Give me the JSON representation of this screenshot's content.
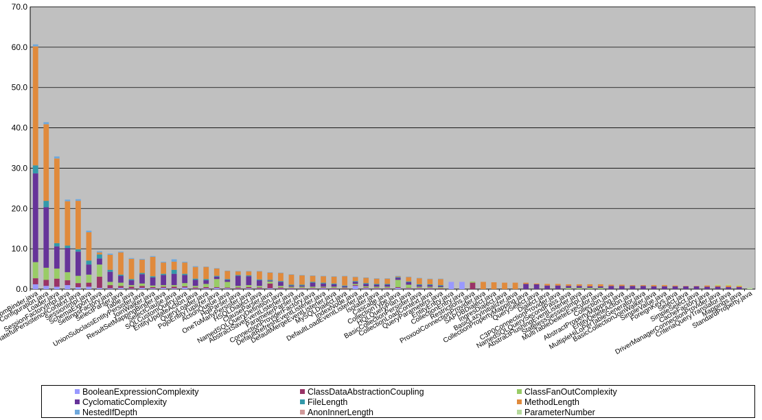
{
  "chart_data": {
    "type": "bar",
    "stacked": true,
    "ylim": [
      0,
      70
    ],
    "yticks": [
      "0.0",
      "10.0",
      "20.0",
      "30.0",
      "40.0",
      "50.0",
      "60.0",
      "70.0"
    ],
    "grid": true,
    "legend_position": "bottom",
    "categories": [
      "HbmBinder.java",
      "Configuration.java",
      "Loader.java",
      "SessionFactoryImpl.java",
      "StatefulPersistenceContext.java",
      "SessionImpl.java",
      "SchemaExport.java",
      "SettingsFactory.java",
      "SelectParser.java",
      "Table.java",
      "UnionSubclassEntityPersister.java",
      "JoinWalker.java",
      "ResultSetMappingBinder.java",
      "SelectClause.java",
      "SQLCustomQuery.java",
      "EntityUpdateAction.java",
      "QueryLoader.java",
      "PojoEntityTuplizer.java",
      "ActionQueue.java",
      "HqlParser.java",
      "OneToManyPersister.java",
      "HSQLDialect.java",
      "ClauseParser.java",
      "NamedSQLQueryDefinition.java",
      "AbstractSaveEventListener.java",
      "ParameterParser.java",
      "ConnectionProviderFactory.java",
      "DefaultRefreshEventListener.java",
      "DefaultMergeEventListener.java",
      "MySQLDialect.java",
      "IndexNode.java",
      "DefaultLoadEventListener.java",
      "Isolater.java",
      "Cascade.java",
      "CollectionType.java",
      "HQLQueryPlan.java",
      "BasicCollectionPersister.java",
      "CollectionLoadContext.java",
      "QueryParameters.java",
      "EntityEntry.java",
      "CollectionEntry.java",
      "Restrictions.java",
      "ProxoolConnectionProvider.java",
      "SAPDBDialect.java",
      "IngresDialect.java",
      "BasicLazyInitializer.java",
      "CollectionPropertyMapping.java",
      "QuerySelect.java",
      "Dialect.java",
      "C3P0ConnectionProvider.java",
      "NamedSQLQuerySecondPass.java",
      "AbstractFlushingEventListener.java",
      "StatelessSessionImpl.java",
      "MultiTableDeleteExecutor.java",
      "Collection.java",
      "AbstractPropertyMapping.java",
      "EntityDeleteAction.java",
      "MultipleHiLoPerTableGenerator.java",
      "BasicCollectionJoinWalker.java",
      "SimpleValue.java",
      "ForeignKeys.java",
      "Select.java",
      "SimpleSelect.java",
      "CacheFactory.java",
      "DriverManagerConnectionProvider.java",
      "CriteriaQueryTranslator.java",
      "Mappings.java",
      "StandardProperty.java"
    ],
    "series": [
      {
        "name": "BooleanExpressionComplexity",
        "color": "#9999ff",
        "values": [
          1.2,
          0.8,
          0.6,
          1.0,
          0.5,
          0.6,
          0.3,
          0.2,
          0.3,
          0.1,
          0.3,
          0.2,
          0.3,
          0.2,
          0.4,
          0.1,
          0.2,
          0.3,
          0.2,
          0.1,
          0.2,
          0.1,
          0.2,
          0.1,
          0.1,
          0.1,
          0.1,
          0.2,
          0.1,
          0,
          0.8,
          0.2,
          0.1,
          0.1,
          0.3,
          0.1,
          0.1,
          0.1,
          0,
          1.8,
          1.8,
          0,
          0,
          0,
          0,
          0,
          0,
          0,
          0,
          0,
          0,
          0,
          0,
          0,
          0,
          0,
          0,
          0,
          0,
          0,
          0,
          0,
          0,
          0,
          0,
          0,
          0,
          0
        ]
      },
      {
        "name": "ClassDataAbstractionCoupling",
        "color": "#993366",
        "values": [
          1.5,
          1.5,
          2.0,
          1.2,
          1.0,
          1.0,
          2.8,
          0.8,
          0.5,
          0.5,
          0.5,
          0.3,
          0.3,
          0.4,
          0.3,
          0.3,
          0.3,
          0.2,
          0.2,
          0.3,
          0.3,
          0.3,
          1.2,
          0.3,
          0.2,
          0.2,
          0.2,
          0.2,
          0.2,
          0.2,
          0.2,
          0.2,
          0.2,
          0.2,
          0.2,
          0.2,
          0.2,
          0.2,
          0.2,
          0,
          0,
          1.6,
          0,
          0,
          0,
          0,
          0,
          0,
          0,
          0,
          0,
          0,
          0,
          0,
          0,
          0,
          0,
          0,
          0,
          0,
          0,
          0,
          0,
          0,
          0,
          0,
          0,
          0
        ]
      },
      {
        "name": "ClassFanOutComplexity",
        "color": "#99cc66",
        "values": [
          4.0,
          3.0,
          2.5,
          2.0,
          1.8,
          2.0,
          3.0,
          0.8,
          0.8,
          0.4,
          0.6,
          0.4,
          0.4,
          0.4,
          0.8,
          0.4,
          0.8,
          2.0,
          1.4,
          0.4,
          0.5,
          0.4,
          0.5,
          0.4,
          0.3,
          0.3,
          0.3,
          0.2,
          0.3,
          0.2,
          0.3,
          0.3,
          0.3,
          0.3,
          1.8,
          0.8,
          0.3,
          0.3,
          0.3,
          0,
          0,
          0.3,
          0,
          0,
          0,
          0,
          0,
          0,
          0,
          0,
          0.3,
          0.3,
          0.3,
          0.3,
          0,
          0,
          0,
          0,
          0,
          0,
          0,
          0,
          0,
          0,
          0,
          0,
          0,
          0
        ]
      },
      {
        "name": "CyclomaticComplexity",
        "color": "#663399",
        "values": [
          22.0,
          15.0,
          5.5,
          6.0,
          6.0,
          2.5,
          1.5,
          2.5,
          1.7,
          1.2,
          2.3,
          2.0,
          2.5,
          2.8,
          2.0,
          1.5,
          0.9,
          0.6,
          0.5,
          2.5,
          2.2,
          1.4,
          0.2,
          1.0,
          0.3,
          0.3,
          1.0,
          0.8,
          0.6,
          0.3,
          0.5,
          0.6,
          0.5,
          0.5,
          0.5,
          0.6,
          0.4,
          0.4,
          0.3,
          0,
          0,
          0,
          0,
          0,
          0,
          0,
          1.3,
          1.2,
          0.9,
          0.9,
          0.5,
          0.5,
          0.4,
          0.4,
          0.8,
          0.8,
          0.8,
          0.8,
          0.7,
          0.7,
          0.7,
          0.7,
          0.7,
          0.6,
          0.6,
          0.5,
          0.5,
          0
        ]
      },
      {
        "name": "FileLength",
        "color": "#3399aa",
        "values": [
          2.0,
          1.6,
          0.8,
          0.6,
          0.6,
          1.0,
          1.0,
          0.5,
          0.3,
          0.3,
          0.3,
          0.3,
          0.3,
          1.0,
          0.3,
          0.3,
          0.3,
          0.2,
          0.2,
          0.2,
          0.2,
          0.2,
          0.2,
          0.2,
          0.2,
          0.2,
          0.2,
          0.2,
          0.2,
          0.2,
          0.2,
          0.2,
          0.2,
          0.2,
          0.2,
          0.2,
          0.2,
          0.2,
          0.2,
          0,
          0,
          0,
          0,
          0,
          0,
          0,
          0,
          0,
          0,
          0,
          0,
          0,
          0,
          0,
          0,
          0,
          0,
          0,
          0,
          0,
          0,
          0,
          0,
          0,
          0,
          0,
          0,
          0
        ]
      },
      {
        "name": "MethodLength",
        "color": "#e08a3c",
        "values": [
          29.5,
          19.0,
          21.0,
          11.0,
          12.0,
          7.0,
          0.5,
          3.7,
          5.5,
          5.0,
          3.3,
          4.8,
          2.8,
          2.0,
          2.8,
          2.9,
          3.0,
          1.8,
          2.0,
          0.9,
          1.0,
          2.0,
          1.8,
          2.0,
          2.5,
          2.3,
          1.5,
          1.6,
          1.7,
          2.3,
          1.0,
          1.3,
          1.3,
          1.3,
          0.2,
          1.1,
          1.5,
          1.3,
          1.5,
          0,
          0,
          0,
          1.8,
          1.7,
          1.6,
          1.6,
          0.3,
          0.2,
          0.4,
          0.4,
          0.4,
          0.4,
          0.5,
          0.5,
          0.3,
          0.3,
          0.2,
          0.2,
          0.3,
          0.3,
          0.2,
          0.1,
          0.1,
          0.3,
          0.3,
          0.4,
          0.3,
          0
        ]
      },
      {
        "name": "NestedIfDepth",
        "color": "#6fa8dc",
        "values": [
          0.5,
          0.5,
          0.5,
          0.4,
          0.4,
          0.4,
          0.3,
          0.3,
          0.2,
          0.2,
          0.2,
          0.2,
          0.2,
          0.6,
          0.2,
          0.2,
          0.1,
          0.1,
          0.1,
          0.1,
          0.1,
          0.1,
          0.1,
          0.1,
          0.1,
          0.1,
          0.1,
          0.1,
          0.1,
          0.1,
          0.1,
          0.1,
          0.1,
          0.1,
          0.1,
          0.1,
          0.1,
          0.1,
          0.1,
          0,
          0,
          0,
          0,
          0,
          0,
          0,
          0,
          0,
          0,
          0,
          0,
          0,
          0,
          0,
          0,
          0,
          0,
          0,
          0,
          0,
          0,
          0,
          0,
          0,
          0,
          0,
          0,
          0
        ]
      },
      {
        "name": "AnonInnerLength",
        "color": "#d09999",
        "values": [
          0,
          0,
          0,
          0,
          0,
          0,
          0,
          0,
          0,
          0,
          0,
          0,
          0,
          0,
          0,
          0,
          0,
          0,
          0,
          0,
          0,
          0,
          0,
          0,
          0,
          0,
          0,
          0,
          0,
          0,
          0,
          0,
          0,
          0,
          0,
          0,
          0,
          0,
          0,
          0,
          0,
          0,
          0,
          0,
          0,
          0,
          0,
          0,
          0,
          0,
          0,
          0,
          0,
          0,
          0,
          0,
          0,
          0,
          0,
          0,
          0,
          0,
          0,
          0,
          0,
          0,
          0,
          0
        ]
      },
      {
        "name": "ParameterNumber",
        "color": "#b5d99c",
        "values": [
          0,
          0,
          0,
          0,
          0,
          0,
          0,
          0,
          0,
          0,
          0,
          0,
          0,
          0,
          0,
          0,
          0,
          0,
          0,
          0,
          0,
          0,
          0,
          0,
          0,
          0,
          0,
          0,
          0,
          0,
          0,
          0,
          0,
          0,
          0,
          0,
          0,
          0,
          0,
          0,
          0,
          0,
          0,
          0,
          0,
          0,
          0,
          0,
          0,
          0,
          0,
          0,
          0,
          0,
          0,
          0,
          0,
          0,
          0,
          0,
          0,
          0,
          0,
          0,
          0.3,
          0.3,
          0.3,
          0.3
        ]
      }
    ]
  }
}
